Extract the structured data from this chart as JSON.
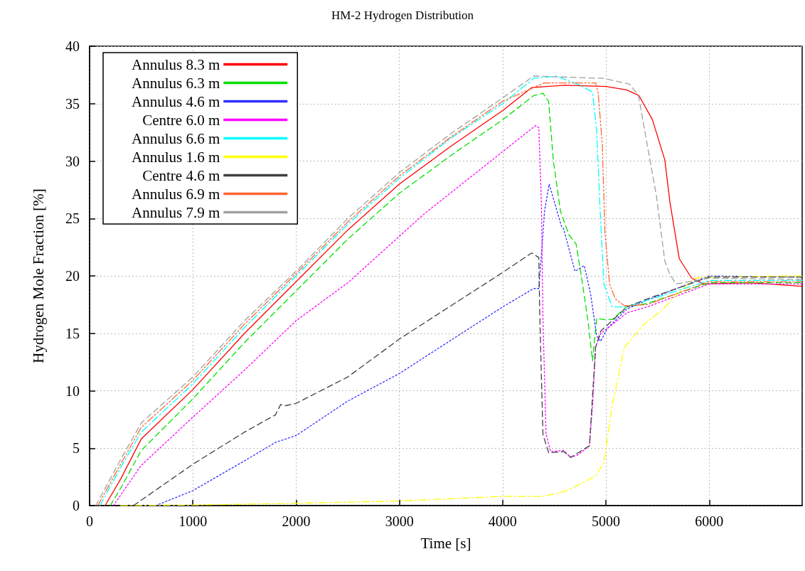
{
  "chart_data": {
    "type": "line",
    "title": "HM-2 Hydrogen Distribution",
    "xlabel": "Time [s]",
    "ylabel": "Hydrogen Mole Fraction [%]",
    "xlim": [
      0,
      6900
    ],
    "xticks": [
      0,
      1000,
      2000,
      3000,
      4000,
      5000,
      6000
    ],
    "ylim": [
      0,
      40
    ],
    "yticks": [
      0,
      5,
      10,
      15,
      20,
      25,
      30,
      35,
      40
    ],
    "grid": true,
    "legend": "top left",
    "marker": "none",
    "series": [
      {
        "name": "Annulus 8.3 m",
        "color": "#ff0000",
        "line_style": "solid",
        "x": [
          150,
          300,
          500,
          1000,
          1500,
          2000,
          2500,
          3000,
          3500,
          4000,
          4280,
          4600,
          5000,
          5200,
          5320,
          5450,
          5570,
          5620,
          5710,
          5830,
          5950,
          6400,
          6900
        ],
        "values": [
          0,
          2.3,
          5.8,
          10.1,
          15,
          19.5,
          24,
          28,
          31.3,
          34.4,
          36.4,
          36.6,
          36.5,
          36.2,
          35.7,
          33.6,
          30.1,
          26.4,
          21.5,
          19.8,
          19.3,
          19.4,
          19.1
        ]
      },
      {
        "name": "Annulus 6.3 m",
        "color": "#00e000",
        "line_style": "dashed",
        "x": [
          200,
          300,
          500,
          1000,
          1500,
          2000,
          2500,
          3000,
          3500,
          4000,
          4300,
          4390,
          4445,
          4490,
          4560,
          4640,
          4710,
          4765,
          4830,
          4870,
          4910,
          4980,
          5060,
          5200,
          5400,
          6000,
          6900
        ],
        "values": [
          0,
          1.5,
          4.8,
          9.3,
          14.2,
          18.7,
          23.2,
          27.2,
          30.5,
          33.6,
          35.7,
          35.9,
          35.2,
          30.1,
          25.6,
          23.6,
          22.8,
          19.8,
          15.8,
          12.6,
          16.3,
          16.2,
          16.2,
          17.3,
          17.6,
          19.4,
          19.4
        ]
      },
      {
        "name": "Annulus 4.6 m",
        "color": "#3030ff",
        "line_style": "dotted",
        "x": [
          640,
          1000,
          1500,
          1800,
          2000,
          2500,
          3000,
          3240,
          4000,
          4300,
          4350,
          4375,
          4405,
          4450,
          4570,
          4590,
          4700,
          4790,
          4850,
          4910,
          4950,
          5010,
          5200,
          5400,
          6000,
          6900
        ],
        "values": [
          0,
          1.3,
          3.9,
          5.5,
          6.1,
          9.1,
          11.5,
          12.9,
          17.3,
          18.9,
          18.9,
          21.8,
          25.6,
          28,
          24.3,
          24.1,
          20.4,
          20.9,
          18.5,
          14.8,
          14.3,
          15.4,
          17.1,
          17.9,
          20,
          19.9
        ]
      },
      {
        "name": "Centre 6.0 m",
        "color": "#ff00ff",
        "line_style": "dotted",
        "x": [
          230,
          500,
          1000,
          1500,
          2000,
          2500,
          3240,
          4320,
          4350,
          4375,
          4390,
          4420,
          4465,
          4590,
          4660,
          4725,
          4840,
          4870,
          4900,
          4950,
          5010,
          5205,
          5400,
          6000,
          6900
        ],
        "values": [
          0,
          3.5,
          7.7,
          11.8,
          16.1,
          19.4,
          25.4,
          33.1,
          32.9,
          26.4,
          16.3,
          6.2,
          4.7,
          4.8,
          4.2,
          4.4,
          5.2,
          8.7,
          13.8,
          15,
          15.4,
          16.8,
          17.3,
          19.3,
          19.3
        ]
      },
      {
        "name": "Annulus 6.6 m",
        "color": "#00ffff",
        "line_style": "dashdot",
        "x": [
          100,
          300,
          500,
          1000,
          1500,
          2000,
          2500,
          3000,
          3500,
          4000,
          4300,
          4520,
          4750,
          4870,
          4910,
          4940,
          4980,
          5060,
          5200,
          5340,
          6000,
          6900
        ],
        "values": [
          0,
          3.3,
          6.4,
          10.6,
          15.5,
          20,
          24.5,
          28.5,
          32,
          35,
          37.2,
          37.4,
          36.6,
          36,
          32.7,
          26.4,
          19.3,
          17.3,
          17.3,
          17.7,
          19.6,
          19.6
        ]
      },
      {
        "name": "Annulus 1.6 m",
        "color": "#ffff00",
        "line_style": "dashdot",
        "x": [
          300,
          1000,
          2000,
          3000,
          4000,
          4390,
          4590,
          4760,
          4900,
          4980,
          5060,
          5180,
          5370,
          5540,
          5710,
          5860,
          6000,
          6900
        ],
        "values": [
          0,
          0.05,
          0.2,
          0.4,
          0.8,
          0.8,
          1.2,
          1.9,
          2.6,
          3.7,
          8.7,
          13.8,
          15.8,
          17,
          18.6,
          19.8,
          19.9,
          20
        ]
      },
      {
        "name": "Centre 4.6 m",
        "color": "#404040",
        "line_style": "dashed",
        "x": [
          425,
          1000,
          1500,
          1800,
          1850,
          1900,
          2000,
          2500,
          3000,
          3240,
          4000,
          4280,
          4350,
          4360,
          4390,
          4445,
          4590,
          4660,
          4840,
          4900,
          4950,
          5205,
          5400,
          6000,
          6900
        ],
        "values": [
          0,
          3.6,
          6.4,
          7.9,
          8.8,
          8.7,
          8.9,
          11.2,
          14.5,
          15.9,
          20.3,
          22,
          21.6,
          16.3,
          6.2,
          4.6,
          4.7,
          4.2,
          5.2,
          13.8,
          15.2,
          17.3,
          18,
          19.9,
          19.9
        ]
      },
      {
        "name": "Annulus 6.9 m",
        "color": "#ff6633",
        "line_style": "dashdotdot",
        "x": [
          80,
          300,
          500,
          1000,
          1500,
          2000,
          2500,
          3000,
          3500,
          4000,
          4400,
          4900,
          4925,
          4965,
          4990,
          5035,
          5090,
          5180,
          5400,
          6000,
          6900
        ],
        "values": [
          0,
          3.6,
          6.8,
          10.9,
          15.8,
          20.2,
          24.7,
          28.7,
          32.1,
          35.2,
          36.8,
          36.8,
          35.9,
          31.4,
          23.8,
          19.3,
          18,
          17.4,
          17.5,
          19.5,
          19.5
        ]
      },
      {
        "name": "Annulus 7.9 m",
        "color": "#a0a0a0",
        "line_style": "dashed",
        "x": [
          60,
          300,
          500,
          1000,
          1500,
          2000,
          2500,
          3000,
          3500,
          4000,
          4300,
          4980,
          5230,
          5315,
          5400,
          5490,
          5570,
          5620,
          5680,
          6000,
          6900
        ],
        "values": [
          0,
          4,
          7.2,
          11.2,
          16.1,
          20.4,
          25,
          29,
          32.4,
          35.5,
          37.4,
          37.2,
          36.7,
          35.7,
          31.4,
          26.9,
          21.3,
          20.1,
          19.3,
          19.8,
          19.7
        ]
      }
    ]
  }
}
